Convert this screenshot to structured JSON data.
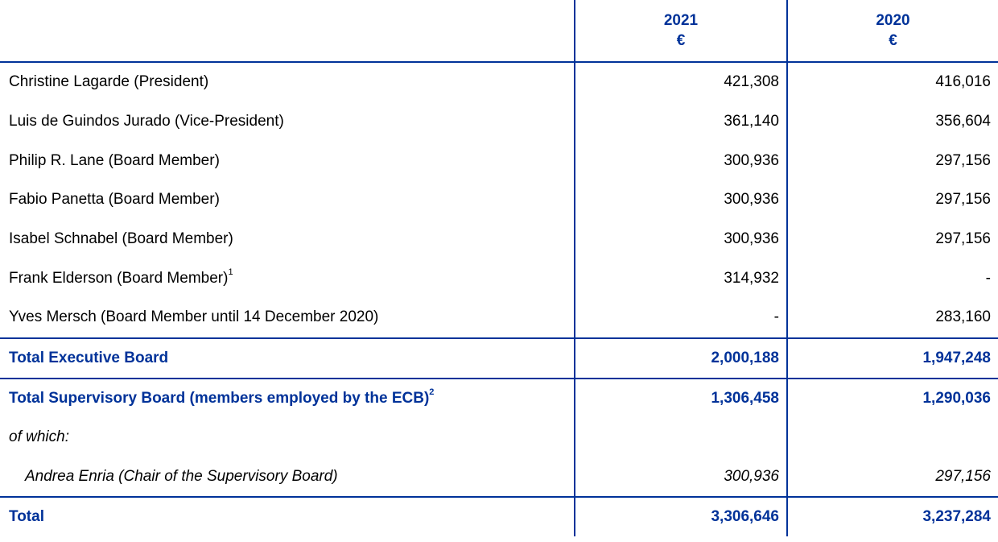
{
  "header": {
    "label": "",
    "columns": [
      {
        "year": "2021",
        "unit": "€"
      },
      {
        "year": "2020",
        "unit": "€"
      }
    ]
  },
  "rows": [
    {
      "label": "Christine Lagarde (President)",
      "note": "",
      "v2021": "421,308",
      "v2020": "416,016"
    },
    {
      "label": "Luis de Guindos Jurado (Vice-President)",
      "note": "",
      "v2021": "361,140",
      "v2020": "356,604"
    },
    {
      "label": "Philip R. Lane (Board Member)",
      "note": "",
      "v2021": "300,936",
      "v2020": "297,156"
    },
    {
      "label": "Fabio Panetta (Board Member)",
      "note": "",
      "v2021": "300,936",
      "v2020": "297,156"
    },
    {
      "label": "Isabel Schnabel (Board Member)",
      "note": "",
      "v2021": "300,936",
      "v2020": "297,156"
    },
    {
      "label": "Frank Elderson (Board Member)",
      "note": "1",
      "v2021": "314,932",
      "v2020": "-"
    },
    {
      "label": "Yves Mersch (Board Member until 14 December 2020)",
      "note": "",
      "v2021": "-",
      "v2020": "283,160"
    }
  ],
  "total_executive": {
    "label": "Total Executive Board",
    "v2021": "2,000,188",
    "v2020": "1,947,248"
  },
  "total_supervisory": {
    "label": "Total Supervisory Board (members employed by the ECB)",
    "note": "2",
    "v2021": "1,306,458",
    "v2020": "1,290,036"
  },
  "of_which": {
    "label": "of which:"
  },
  "chair": {
    "label": "Andrea Enria (Chair of the Supervisory Board)",
    "v2021": "300,936",
    "v2020": "297,156"
  },
  "total": {
    "label": "Total",
    "v2021": "3,306,646",
    "v2020": "3,237,284"
  },
  "colors": {
    "accent": "#003299",
    "text": "#000000"
  }
}
